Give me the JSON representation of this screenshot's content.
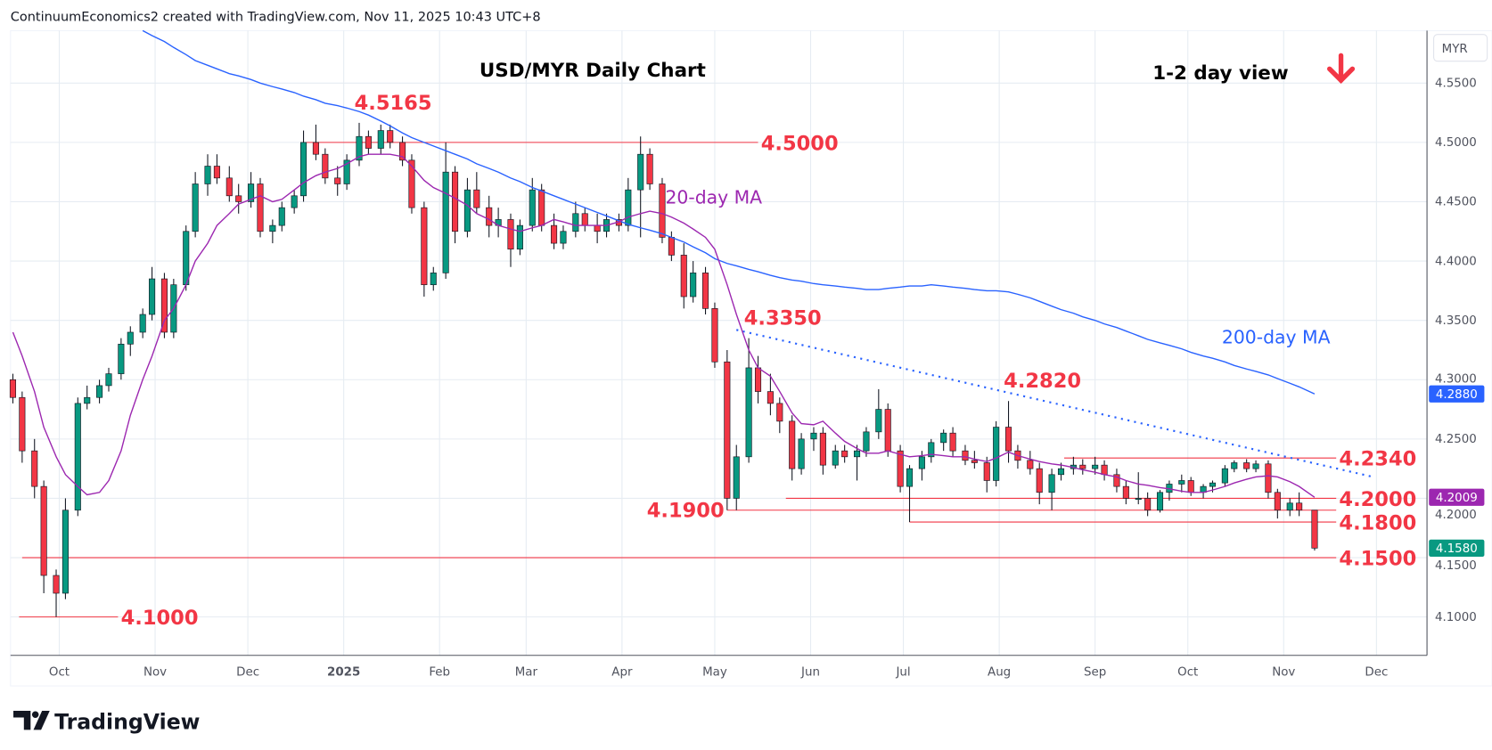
{
  "header": {
    "attribution": "ContinuumEconomics2 created with TradingView.com, Nov 11, 2025 10:43 UTC+8"
  },
  "footer": {
    "logo_text": "TradingView"
  },
  "colors": {
    "up": "#089981",
    "down": "#f23645",
    "ma20": "#9c27b0",
    "ma200": "#2962ff",
    "levels": "#f23645",
    "grid": "#e6ecf2"
  },
  "chart_data": {
    "type": "candlestick",
    "title": "USD/MYR Daily Chart",
    "subtitle": "1-2 day view",
    "view_icon": "arrow-down-icon",
    "currency": "MYR",
    "ylim": [
      4.065,
      4.6
    ],
    "grid": true,
    "y_ticks": [
      "4.5500",
      "4.5000",
      "4.4500",
      "4.4000",
      "4.3500",
      "4.3000",
      "4.2500",
      "4.2000",
      "4.1500",
      "4.1000"
    ],
    "x_ticks": [
      {
        "label": "Oct",
        "date": "2024-10-01"
      },
      {
        "label": "Nov",
        "date": "2024-11-01"
      },
      {
        "label": "Dec",
        "date": "2024-12-01"
      },
      {
        "label": "2025",
        "date": "2025-01-01",
        "bold": true
      },
      {
        "label": "Feb",
        "date": "2025-02-01"
      },
      {
        "label": "Mar",
        "date": "2025-03-01"
      },
      {
        "label": "Apr",
        "date": "2025-04-01"
      },
      {
        "label": "May",
        "date": "2025-05-01"
      },
      {
        "label": "Jun",
        "date": "2025-06-01"
      },
      {
        "label": "Jul",
        "date": "2025-07-01"
      },
      {
        "label": "Aug",
        "date": "2025-08-01"
      },
      {
        "label": "Sep",
        "date": "2025-09-01"
      },
      {
        "label": "Oct",
        "date": "2025-10-01"
      },
      {
        "label": "Nov",
        "date": "2025-11-01"
      },
      {
        "label": "Dec",
        "date": "2025-12-01"
      }
    ],
    "candles_columns": [
      "date",
      "open",
      "high",
      "low",
      "close"
    ],
    "candles": [
      [
        "2024-09-16",
        4.3,
        4.305,
        4.28,
        4.285
      ],
      [
        "2024-09-19",
        4.285,
        4.29,
        4.23,
        4.24
      ],
      [
        "2024-09-23",
        4.24,
        4.25,
        4.2,
        4.21
      ],
      [
        "2024-09-26",
        4.21,
        4.215,
        4.12,
        4.135
      ],
      [
        "2024-09-30",
        4.135,
        4.14,
        4.1,
        4.12
      ],
      [
        "2024-10-03",
        4.12,
        4.2,
        4.115,
        4.19
      ],
      [
        "2024-10-07",
        4.19,
        4.285,
        4.185,
        4.28
      ],
      [
        "2024-10-10",
        4.28,
        4.295,
        4.275,
        4.285
      ],
      [
        "2024-10-14",
        4.285,
        4.3,
        4.28,
        4.295
      ],
      [
        "2024-10-17",
        4.295,
        4.31,
        4.29,
        4.305
      ],
      [
        "2024-10-21",
        4.305,
        4.335,
        4.3,
        4.33
      ],
      [
        "2024-10-24",
        4.33,
        4.345,
        4.32,
        4.34
      ],
      [
        "2024-10-28",
        4.34,
        4.36,
        4.335,
        4.355
      ],
      [
        "2024-10-31",
        4.355,
        4.395,
        4.35,
        4.385
      ],
      [
        "2024-11-04",
        4.385,
        4.39,
        4.335,
        4.34
      ],
      [
        "2024-11-07",
        4.34,
        4.385,
        4.335,
        4.38
      ],
      [
        "2024-11-11",
        4.38,
        4.43,
        4.375,
        4.425
      ],
      [
        "2024-11-14",
        4.425,
        4.475,
        4.42,
        4.465
      ],
      [
        "2024-11-18",
        4.465,
        4.49,
        4.455,
        4.48
      ],
      [
        "2024-11-21",
        4.48,
        4.49,
        4.465,
        4.47
      ],
      [
        "2024-11-25",
        4.47,
        4.48,
        4.45,
        4.455
      ],
      [
        "2024-11-28",
        4.455,
        4.465,
        4.44,
        4.45
      ],
      [
        "2024-12-02",
        4.45,
        4.475,
        4.445,
        4.465
      ],
      [
        "2024-12-05",
        4.465,
        4.47,
        4.42,
        4.425
      ],
      [
        "2024-12-09",
        4.425,
        4.435,
        4.415,
        4.43
      ],
      [
        "2024-12-12",
        4.43,
        4.45,
        4.425,
        4.445
      ],
      [
        "2024-12-16",
        4.445,
        4.46,
        4.44,
        4.455
      ],
      [
        "2024-12-19",
        4.455,
        4.51,
        4.45,
        4.5
      ],
      [
        "2024-12-23",
        4.5,
        4.515,
        4.485,
        4.49
      ],
      [
        "2024-12-26",
        4.49,
        4.495,
        4.465,
        4.47
      ],
      [
        "2024-12-30",
        4.47,
        4.48,
        4.455,
        4.465
      ],
      [
        "2025-01-02",
        4.465,
        4.49,
        4.46,
        4.485
      ],
      [
        "2025-01-06",
        4.485,
        4.5165,
        4.48,
        4.505
      ],
      [
        "2025-01-09",
        4.505,
        4.51,
        4.49,
        4.495
      ],
      [
        "2025-01-13",
        4.495,
        4.515,
        4.49,
        4.51
      ],
      [
        "2025-01-16",
        4.51,
        4.515,
        4.495,
        4.5
      ],
      [
        "2025-01-20",
        4.5,
        4.505,
        4.48,
        4.485
      ],
      [
        "2025-01-23",
        4.485,
        4.49,
        4.44,
        4.445
      ],
      [
        "2025-01-27",
        4.445,
        4.45,
        4.37,
        4.38
      ],
      [
        "2025-01-30",
        4.38,
        4.395,
        4.375,
        4.39
      ],
      [
        "2025-02-03",
        4.39,
        4.5,
        4.385,
        4.475
      ],
      [
        "2025-02-06",
        4.475,
        4.48,
        4.415,
        4.425
      ],
      [
        "2025-02-10",
        4.425,
        4.47,
        4.42,
        4.46
      ],
      [
        "2025-02-13",
        4.46,
        4.475,
        4.44,
        4.445
      ],
      [
        "2025-02-17",
        4.445,
        4.455,
        4.42,
        4.43
      ],
      [
        "2025-02-20",
        4.43,
        4.445,
        4.42,
        4.435
      ],
      [
        "2025-02-24",
        4.435,
        4.44,
        4.395,
        4.41
      ],
      [
        "2025-02-27",
        4.41,
        4.435,
        4.405,
        4.43
      ],
      [
        "2025-03-03",
        4.43,
        4.47,
        4.425,
        4.46
      ],
      [
        "2025-03-06",
        4.46,
        4.465,
        4.425,
        4.43
      ],
      [
        "2025-03-10",
        4.43,
        4.44,
        4.41,
        4.415
      ],
      [
        "2025-03-13",
        4.415,
        4.43,
        4.41,
        4.425
      ],
      [
        "2025-03-17",
        4.425,
        4.45,
        4.42,
        4.44
      ],
      [
        "2025-03-20",
        4.44,
        4.445,
        4.425,
        4.43
      ],
      [
        "2025-03-24",
        4.43,
        4.44,
        4.415,
        4.425
      ],
      [
        "2025-03-27",
        4.425,
        4.44,
        4.42,
        4.435
      ],
      [
        "2025-03-31",
        4.435,
        4.44,
        4.425,
        4.43
      ],
      [
        "2025-04-03",
        4.43,
        4.47,
        4.425,
        4.46
      ],
      [
        "2025-04-07",
        4.46,
        4.505,
        4.42,
        4.49
      ],
      [
        "2025-04-10",
        4.49,
        4.495,
        4.46,
        4.465
      ],
      [
        "2025-04-14",
        4.465,
        4.47,
        4.415,
        4.42
      ],
      [
        "2025-04-17",
        4.42,
        4.425,
        4.4,
        4.405
      ],
      [
        "2025-04-21",
        4.405,
        4.415,
        4.36,
        4.37
      ],
      [
        "2025-04-24",
        4.37,
        4.4,
        4.365,
        4.39
      ],
      [
        "2025-04-28",
        4.39,
        4.395,
        4.355,
        4.36
      ],
      [
        "2025-05-01",
        4.36,
        4.365,
        4.31,
        4.315
      ],
      [
        "2025-05-05",
        4.315,
        4.325,
        4.19,
        4.2
      ],
      [
        "2025-05-08",
        4.2,
        4.245,
        4.19,
        4.235
      ],
      [
        "2025-05-12",
        4.235,
        4.335,
        4.23,
        4.31
      ],
      [
        "2025-05-15",
        4.31,
        4.32,
        4.28,
        4.29
      ],
      [
        "2025-05-19",
        4.29,
        4.305,
        4.27,
        4.28
      ],
      [
        "2025-05-22",
        4.28,
        4.285,
        4.255,
        4.265
      ],
      [
        "2025-05-26",
        4.265,
        4.27,
        4.215,
        4.225
      ],
      [
        "2025-05-29",
        4.225,
        4.255,
        4.22,
        4.25
      ],
      [
        "2025-06-02",
        4.25,
        4.26,
        4.24,
        4.255
      ],
      [
        "2025-06-05",
        4.255,
        4.26,
        4.22,
        4.228
      ],
      [
        "2025-06-09",
        4.228,
        4.245,
        4.225,
        4.24
      ],
      [
        "2025-06-12",
        4.24,
        4.245,
        4.23,
        4.235
      ],
      [
        "2025-06-16",
        4.235,
        4.245,
        4.215,
        4.24
      ],
      [
        "2025-06-19",
        4.24,
        4.26,
        4.235,
        4.256
      ],
      [
        "2025-06-23",
        4.256,
        4.292,
        4.25,
        4.275
      ],
      [
        "2025-06-26",
        4.275,
        4.28,
        4.235,
        4.24
      ],
      [
        "2025-06-30",
        4.24,
        4.245,
        4.205,
        4.21
      ],
      [
        "2025-07-03",
        4.21,
        4.228,
        4.18,
        4.225
      ],
      [
        "2025-07-07",
        4.225,
        4.24,
        4.215,
        4.235
      ],
      [
        "2025-07-10",
        4.235,
        4.25,
        4.23,
        4.247
      ],
      [
        "2025-07-14",
        4.247,
        4.258,
        4.24,
        4.255
      ],
      [
        "2025-07-17",
        4.255,
        4.26,
        4.235,
        4.24
      ],
      [
        "2025-07-21",
        4.24,
        4.245,
        4.228,
        4.232
      ],
      [
        "2025-07-24",
        4.232,
        4.24,
        4.225,
        4.23
      ],
      [
        "2025-07-28",
        4.23,
        4.235,
        4.205,
        4.215
      ],
      [
        "2025-07-31",
        4.215,
        4.265,
        4.21,
        4.26
      ],
      [
        "2025-08-04",
        4.26,
        4.282,
        4.23,
        4.24
      ],
      [
        "2025-08-07",
        4.24,
        4.245,
        4.225,
        4.232
      ],
      [
        "2025-08-11",
        4.232,
        4.24,
        4.22,
        4.225
      ],
      [
        "2025-08-14",
        4.225,
        4.23,
        4.195,
        4.205
      ],
      [
        "2025-08-18",
        4.205,
        4.225,
        4.19,
        4.22
      ],
      [
        "2025-08-21",
        4.22,
        4.23,
        4.215,
        4.225
      ],
      [
        "2025-08-25",
        4.225,
        4.235,
        4.22,
        4.228
      ],
      [
        "2025-08-28",
        4.228,
        4.233,
        4.22,
        4.225
      ],
      [
        "2025-09-01",
        4.225,
        4.235,
        4.22,
        4.228
      ],
      [
        "2025-09-04",
        4.228,
        4.232,
        4.215,
        4.22
      ],
      [
        "2025-09-08",
        4.22,
        4.225,
        4.205,
        4.21
      ],
      [
        "2025-09-11",
        4.21,
        4.215,
        4.195,
        4.2
      ],
      [
        "2025-09-15",
        4.2,
        4.222,
        4.195,
        4.2
      ],
      [
        "2025-09-18",
        4.2,
        4.205,
        4.185,
        4.19
      ],
      [
        "2025-09-22",
        4.19,
        4.207,
        4.188,
        4.205
      ],
      [
        "2025-09-25",
        4.205,
        4.215,
        4.198,
        4.212
      ],
      [
        "2025-09-29",
        4.212,
        4.22,
        4.205,
        4.215
      ],
      [
        "2025-10-02",
        4.215,
        4.218,
        4.202,
        4.205
      ],
      [
        "2025-10-06",
        4.205,
        4.212,
        4.2,
        4.21
      ],
      [
        "2025-10-09",
        4.21,
        4.215,
        4.205,
        4.213
      ],
      [
        "2025-10-13",
        4.213,
        4.228,
        4.21,
        4.225
      ],
      [
        "2025-10-16",
        4.225,
        4.232,
        4.222,
        4.23
      ],
      [
        "2025-10-20",
        4.23,
        4.233,
        4.222,
        4.225
      ],
      [
        "2025-10-23",
        4.225,
        4.232,
        4.222,
        4.229
      ],
      [
        "2025-10-27",
        4.229,
        4.232,
        4.2,
        4.205
      ],
      [
        "2025-10-30",
        4.205,
        4.208,
        4.183,
        4.19
      ],
      [
        "2025-11-03",
        4.19,
        4.2,
        4.185,
        4.196
      ],
      [
        "2025-11-06",
        4.196,
        4.205,
        4.185,
        4.19
      ],
      [
        "2025-11-11",
        4.19,
        4.19,
        4.156,
        4.158
      ]
    ],
    "ma20": {
      "name": "20-day MA",
      "values": [
        4.34,
        4.32,
        4.29,
        4.26,
        4.235,
        4.22,
        4.21,
        4.203,
        4.205,
        4.215,
        4.24,
        4.27,
        4.3,
        4.32,
        4.35,
        4.36,
        4.38,
        4.4,
        4.415,
        4.43,
        4.44,
        4.448,
        4.452,
        4.455,
        4.45,
        4.452,
        4.46,
        4.466,
        4.472,
        4.475,
        4.478,
        4.482,
        4.488,
        4.49,
        4.49,
        4.49,
        4.488,
        4.48,
        4.468,
        4.462,
        4.457,
        4.453,
        4.447,
        4.44,
        4.435,
        4.43,
        4.427,
        4.425,
        4.428,
        4.43,
        4.435,
        4.433,
        4.43,
        4.43,
        4.43,
        4.43,
        4.433,
        4.437,
        4.44,
        4.442,
        4.44,
        4.437,
        4.432,
        4.427,
        4.42,
        4.41,
        4.38,
        4.355,
        4.325,
        4.31,
        4.303,
        4.29,
        4.272,
        4.263,
        4.262,
        4.265,
        4.255,
        4.248,
        4.242,
        4.238,
        4.238,
        4.24,
        4.237,
        4.235,
        4.236,
        4.237,
        4.236,
        4.235,
        4.235,
        4.233,
        4.231,
        4.234,
        4.239,
        4.236,
        4.233,
        4.231,
        4.229,
        4.228,
        4.226,
        4.224,
        4.222,
        4.22,
        4.218,
        4.215,
        4.212,
        4.211,
        4.209,
        4.208,
        4.206,
        4.205,
        4.205,
        4.207,
        4.21,
        4.213,
        4.216,
        4.218,
        4.219,
        4.218,
        4.214,
        4.21,
        4.2009
      ]
    },
    "ma200": {
      "name": "200-day MA",
      "values": [
        null,
        null,
        null,
        null,
        null,
        null,
        null,
        null,
        null,
        null,
        null,
        null,
        4.6,
        4.59,
        4.585,
        4.58,
        4.574,
        4.569,
        4.565,
        4.562,
        4.558,
        4.556,
        4.553,
        4.55,
        4.547,
        4.545,
        4.542,
        4.539,
        4.536,
        4.533,
        4.531,
        4.529,
        4.526,
        4.523,
        4.518,
        4.514,
        4.508,
        4.504,
        4.5,
        4.497,
        4.493,
        4.49,
        4.486,
        4.482,
        4.478,
        4.475,
        4.47,
        4.467,
        4.462,
        4.459,
        4.455,
        4.452,
        4.448,
        4.445,
        4.441,
        4.438,
        4.434,
        4.431,
        4.428,
        4.426,
        4.423,
        4.42,
        4.416,
        4.412,
        4.407,
        4.402,
        4.398,
        4.396,
        4.393,
        4.391,
        4.388,
        4.386,
        4.384,
        4.383,
        4.381,
        4.38,
        4.379,
        4.378,
        4.377,
        4.376,
        4.376,
        4.377,
        4.378,
        4.379,
        4.379,
        4.38,
        4.379,
        4.378,
        4.377,
        4.376,
        4.375,
        4.375,
        4.374,
        4.372,
        4.369,
        4.366,
        4.362,
        4.359,
        4.356,
        4.353,
        4.35,
        4.347,
        4.344,
        4.341,
        4.337,
        4.334,
        4.331,
        4.329,
        4.326,
        4.323,
        4.32,
        4.318,
        4.315,
        4.312,
        4.309,
        4.307,
        4.304,
        4.301,
        4.297,
        4.294,
        4.288
      ]
    },
    "levels": [
      {
        "label": "4.5000",
        "value": 4.5,
        "from": "2024-12-20",
        "to": "2025-05-15",
        "label_pos": "right"
      },
      {
        "label": "4.1000",
        "value": 4.1,
        "from": "2024-09-18",
        "to": "2024-10-20",
        "label_pos": "right"
      },
      {
        "label": "4.1500",
        "value": 4.15,
        "from": "2024-09-19",
        "to": "2025-11-30",
        "label_pos": "right"
      },
      {
        "label": "4.1900",
        "value": 4.19,
        "from": "2025-05-05",
        "to": "2025-11-30",
        "label_pos": "left"
      },
      {
        "label": "4.1800",
        "value": 4.18,
        "from": "2025-07-03",
        "to": "2025-11-30",
        "label_pos": "right"
      },
      {
        "label": "4.2000",
        "value": 4.2,
        "from": "2025-05-24",
        "to": "2025-11-30",
        "label_pos": "right"
      },
      {
        "label": "4.2340",
        "value": 4.234,
        "from": "2025-08-22",
        "to": "2025-11-30",
        "label_pos": "right"
      }
    ],
    "annotations": [
      {
        "label": "4.5165",
        "date": "2025-01-06",
        "value": 4.5165
      },
      {
        "label": "4.3350",
        "date": "2025-05-12",
        "value": 4.335
      },
      {
        "label": "4.2820",
        "date": "2025-08-04",
        "value": 4.282
      },
      {
        "label": "20-day MA",
        "date": "2025-04-15",
        "value": 4.455,
        "series": "ma20"
      },
      {
        "label": "200-day MA",
        "date": "2025-10-12",
        "value": 4.345,
        "series": "ma200"
      }
    ],
    "trendline": {
      "style": "dotted",
      "from": [
        "2025-05-08",
        4.342
      ],
      "to": [
        "2025-11-30",
        4.218
      ]
    },
    "price_tags": [
      {
        "label": "4.2880",
        "value": 4.288,
        "series": "ma200"
      },
      {
        "label": "4.2009",
        "value": 4.2009,
        "series": "ma20"
      },
      {
        "label": "4.1580",
        "value": 4.158,
        "series": "last"
      }
    ]
  }
}
